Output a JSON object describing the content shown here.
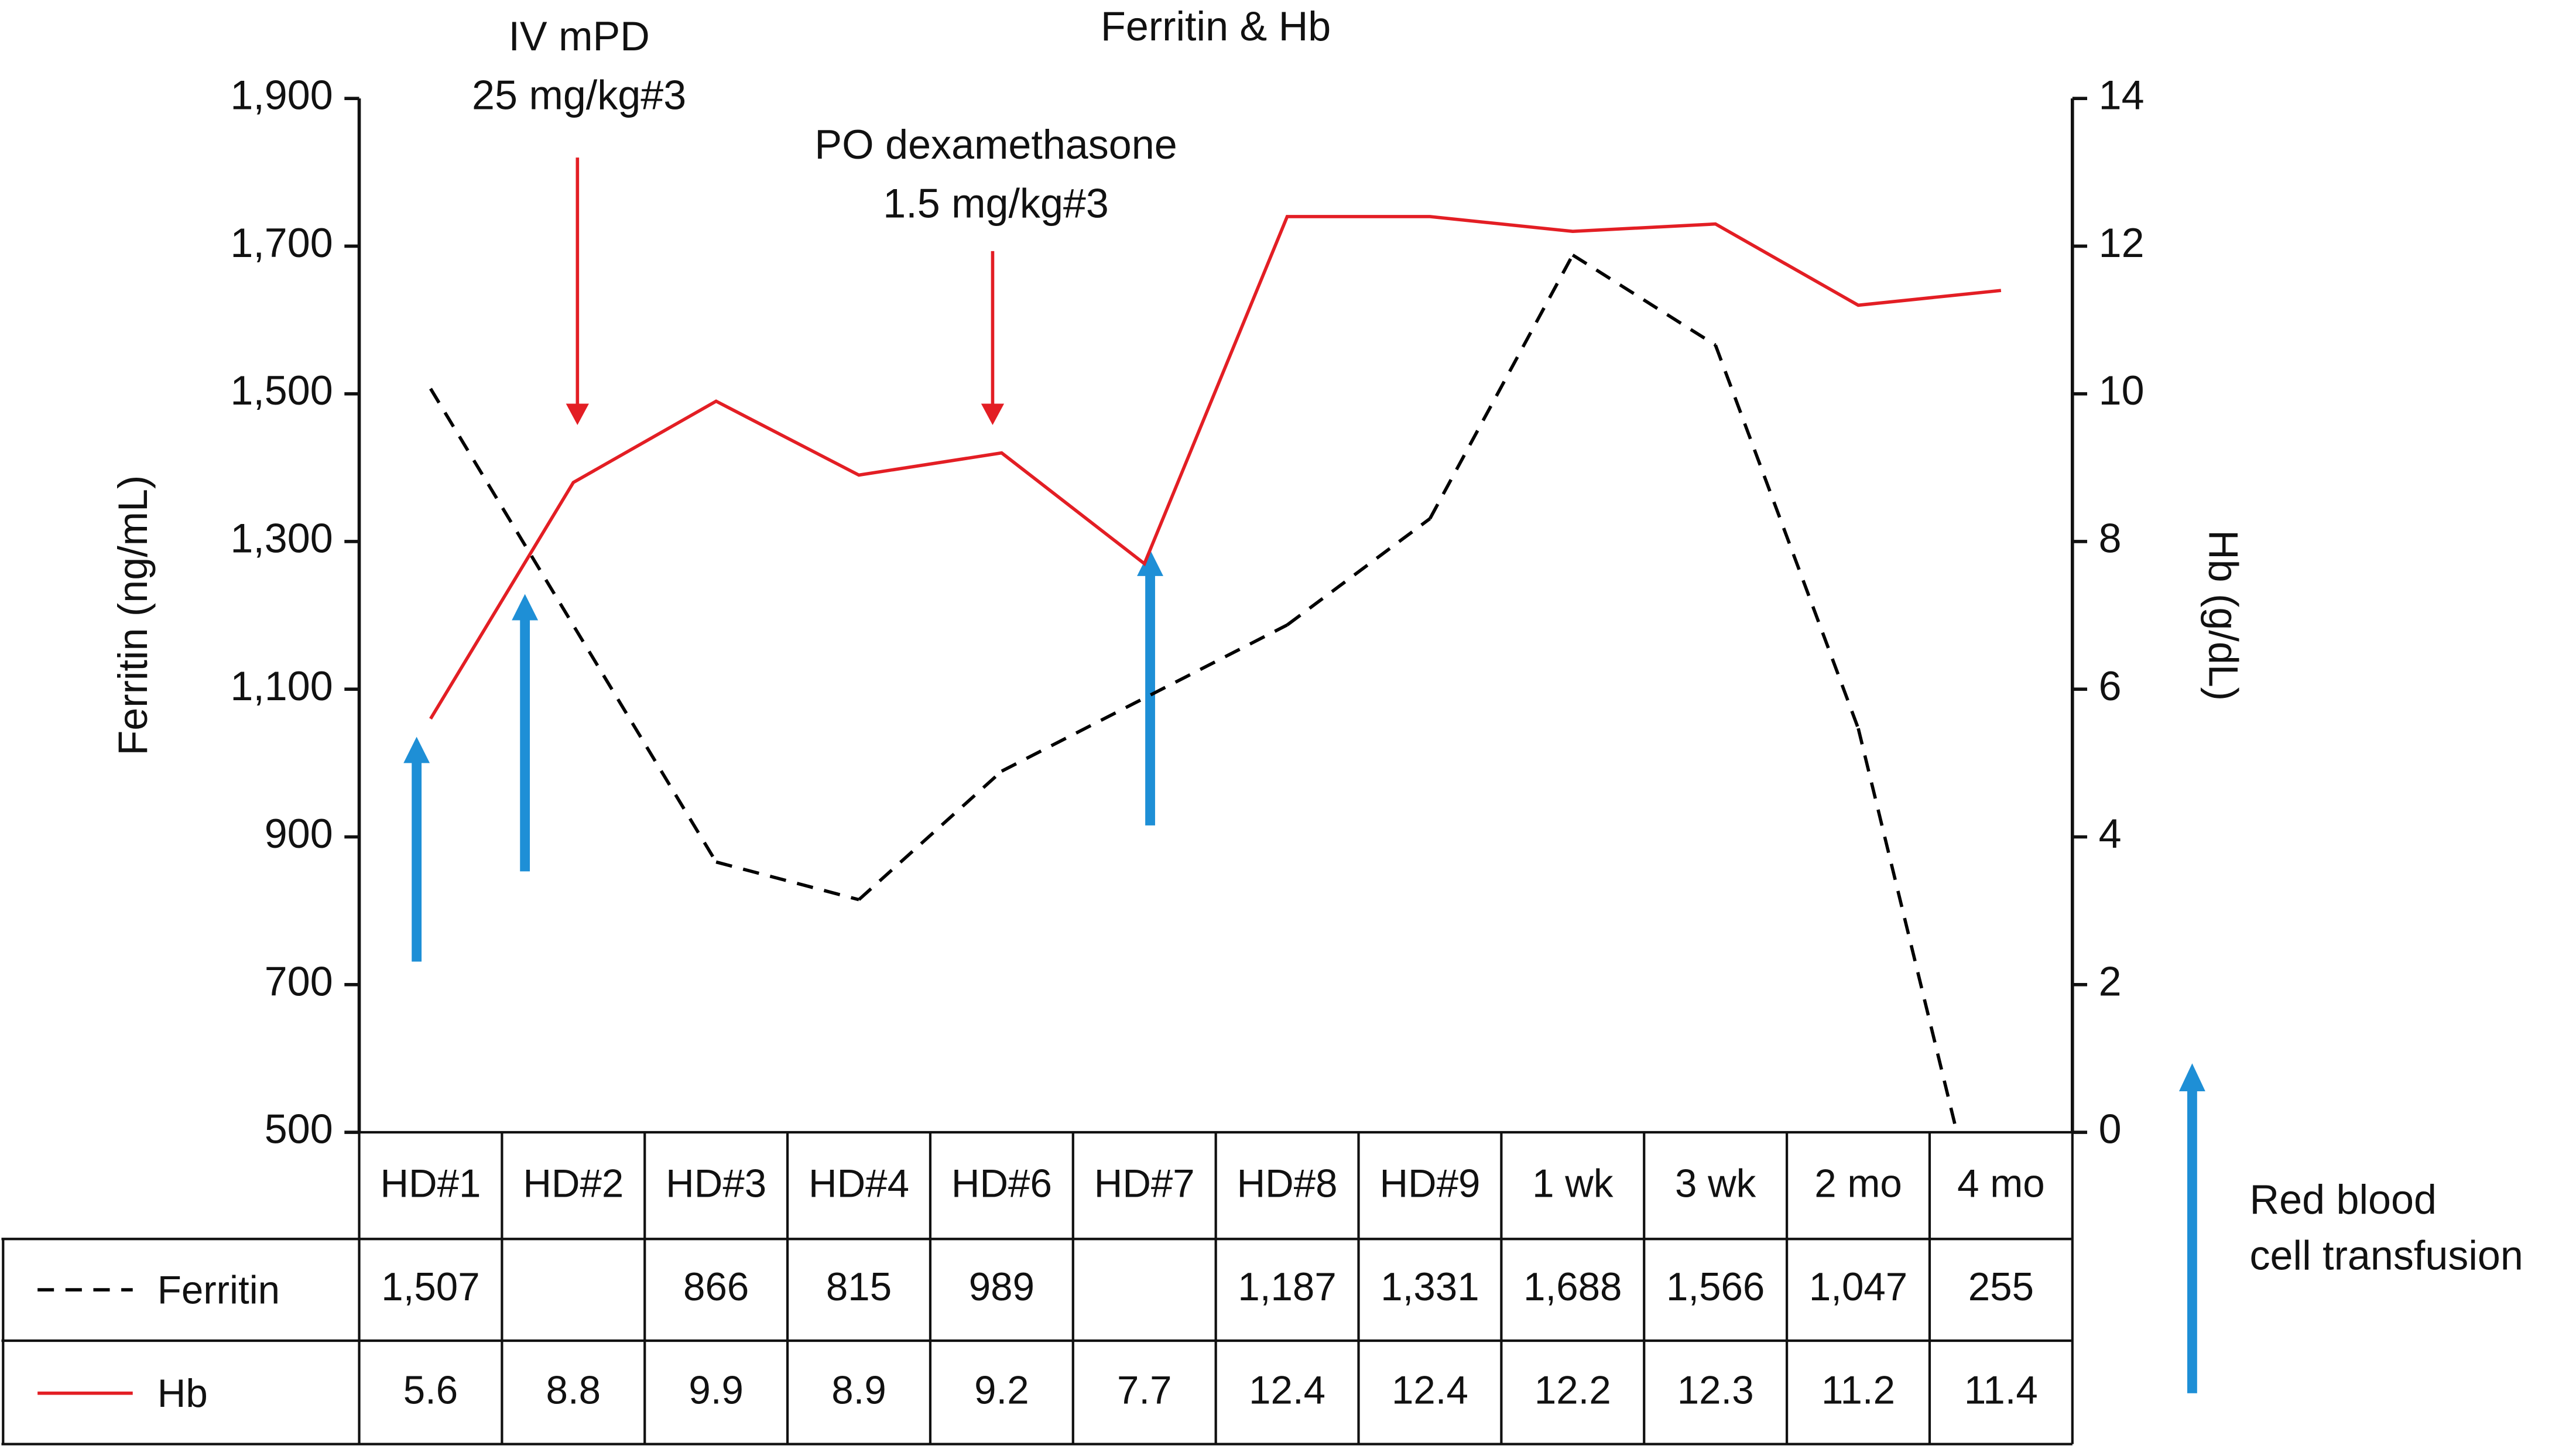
{
  "chart_data": {
    "type": "line",
    "title": "Ferritin & Hb",
    "categories": [
      "HD#1",
      "HD#2",
      "HD#3",
      "HD#4",
      "HD#6",
      "HD#7",
      "HD#8",
      "HD#9",
      "1 wk",
      "3 wk",
      "2 mo",
      "4 mo"
    ],
    "series": [
      {
        "name": "Ferritin",
        "color": "#000000",
        "dash": true,
        "values": [
          1507,
          null,
          866,
          815,
          989,
          null,
          1187,
          1331,
          1688,
          1566,
          1047,
          255
        ],
        "value_labels": [
          "1,507",
          null,
          "866",
          "815",
          "989",
          null,
          "1,187",
          "1,331",
          "1,688",
          "1,566",
          "1,047",
          "255"
        ]
      },
      {
        "name": "Hb",
        "color": "#e31e24",
        "axis": "y2",
        "values": [
          5.6,
          8.8,
          9.9,
          8.9,
          9.2,
          7.7,
          12.4,
          12.4,
          12.2,
          12.3,
          11.2,
          11.4
        ]
      }
    ],
    "ylabel": "Ferritin (ng/mL)",
    "y2label": "Hb (g/dL)",
    "ylim": [
      500,
      1900
    ],
    "yticks": [
      500,
      700,
      900,
      {
        "value": 1100,
        "label": "1,100"
      },
      {
        "value": 1300,
        "label": "1,300"
      },
      {
        "value": 1500,
        "label": "1,500"
      },
      {
        "value": 1700,
        "label": "1,700"
      },
      {
        "value": 1900,
        "label": "1,900"
      }
    ],
    "y2lim": [
      0,
      14
    ],
    "y2ticks": [
      0,
      2,
      4,
      6,
      8,
      10,
      12,
      14
    ],
    "annotations": [
      [
        "IV mPD",
        "25 mg/kg#3"
      ],
      [
        "PO dexamethasone",
        "1.5 mg/kg#3"
      ]
    ],
    "legend_note": [
      "Red blood",
      "cell transfusion"
    ]
  }
}
